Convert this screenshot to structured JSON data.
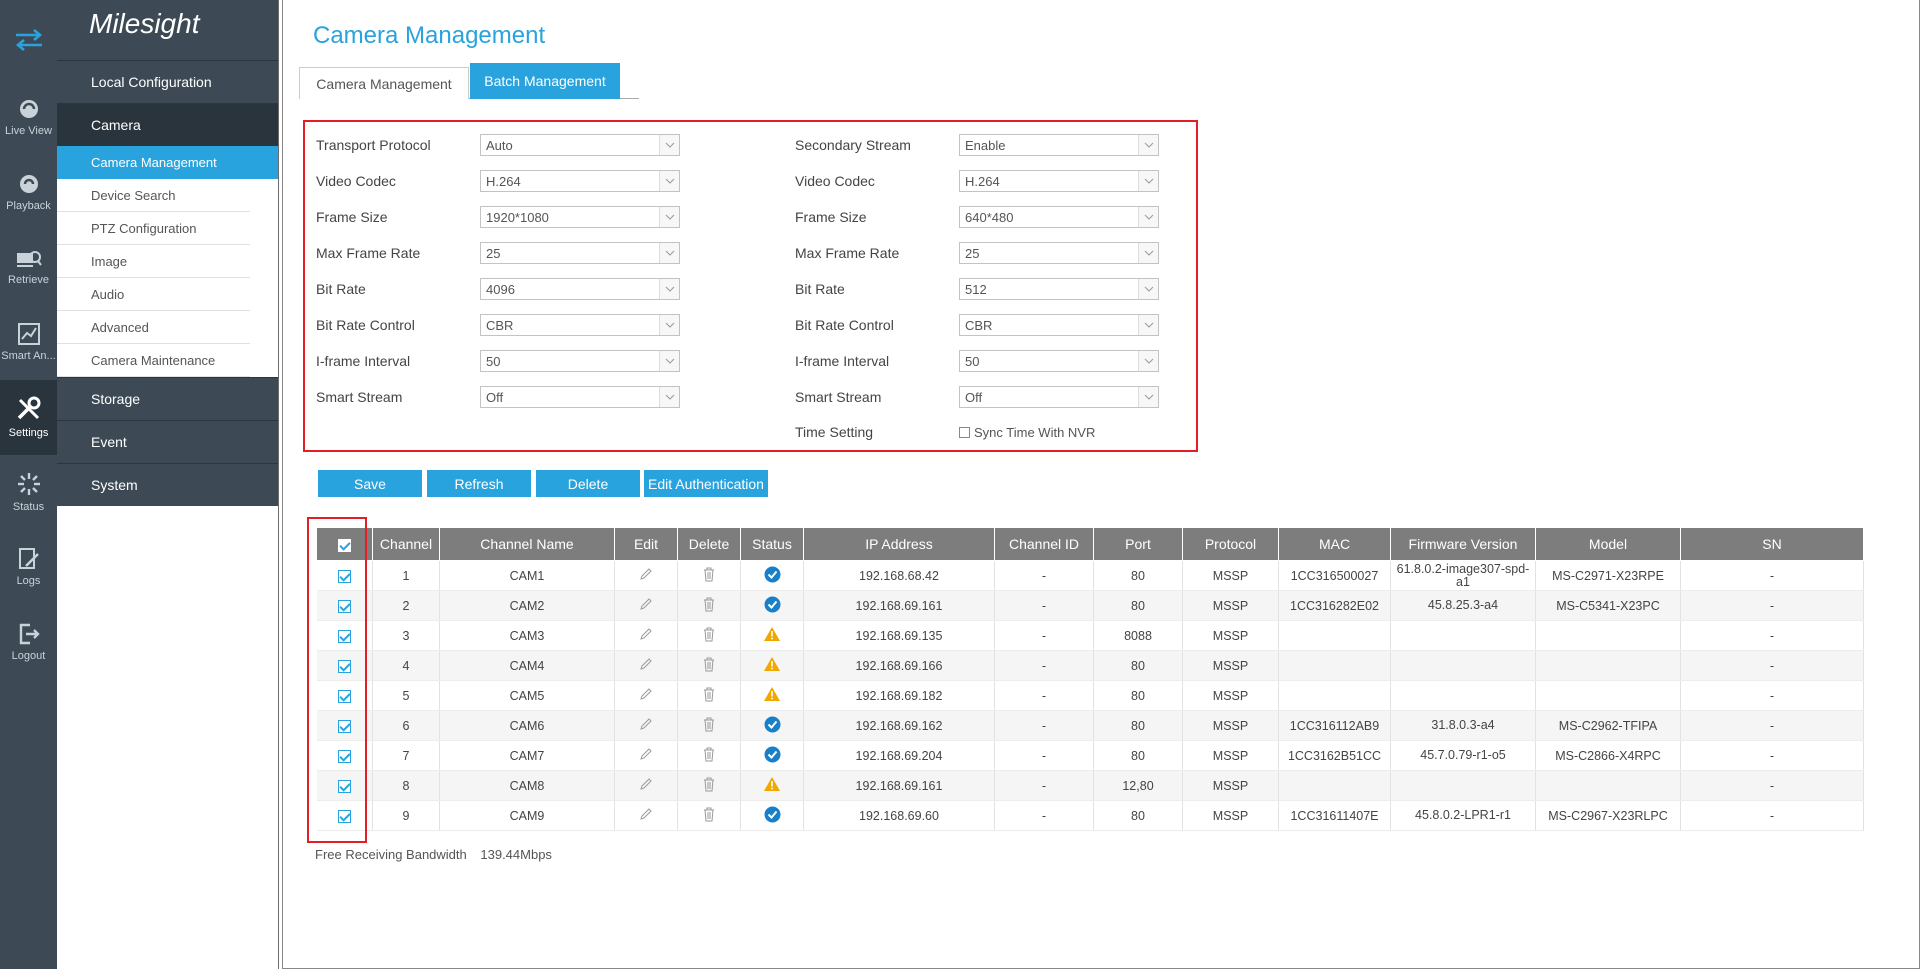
{
  "rail": {
    "items": [
      {
        "label": "Live View",
        "icon": "live-view-icon"
      },
      {
        "label": "Playback",
        "icon": "playback-icon"
      },
      {
        "label": "Retrieve",
        "icon": "retrieve-icon"
      },
      {
        "label": "Smart An...",
        "icon": "smart-analysis-icon"
      },
      {
        "label": "Settings",
        "icon": "settings-icon"
      },
      {
        "label": "Status",
        "icon": "status-icon"
      },
      {
        "label": "Logs",
        "icon": "logs-icon"
      },
      {
        "label": "Logout",
        "icon": "logout-icon"
      }
    ]
  },
  "menu": {
    "logo": "Milesight",
    "local_configuration": "Local Configuration",
    "camera": "Camera",
    "camera_subs": [
      "Camera Management",
      "Device Search",
      "PTZ Configuration",
      "Image",
      "Audio",
      "Advanced",
      "Camera Maintenance"
    ],
    "storage": "Storage",
    "event": "Event",
    "system": "System"
  },
  "page": {
    "title": "Camera Management",
    "tabs": [
      "Camera Management",
      "Batch Management"
    ]
  },
  "form": {
    "left": [
      {
        "label": "Transport Protocol",
        "value": "Auto"
      },
      {
        "label": "Video Codec",
        "value": "H.264"
      },
      {
        "label": "Frame Size",
        "value": "1920*1080"
      },
      {
        "label": "Max Frame Rate",
        "value": "25"
      },
      {
        "label": "Bit Rate",
        "value": "4096"
      },
      {
        "label": "Bit Rate Control",
        "value": "CBR"
      },
      {
        "label": "I-frame Interval",
        "value": "50"
      },
      {
        "label": "Smart Stream",
        "value": "Off"
      }
    ],
    "right": [
      {
        "label": "Secondary Stream",
        "value": "Enable"
      },
      {
        "label": "Video Codec",
        "value": "H.264"
      },
      {
        "label": "Frame Size",
        "value": "640*480"
      },
      {
        "label": "Max Frame Rate",
        "value": "25"
      },
      {
        "label": "Bit Rate",
        "value": "512"
      },
      {
        "label": "Bit Rate Control",
        "value": "CBR"
      },
      {
        "label": "I-frame Interval",
        "value": "50"
      },
      {
        "label": "Smart Stream",
        "value": "Off"
      }
    ],
    "time_setting_label": "Time Setting",
    "sync_time_label": "Sync Time With NVR"
  },
  "buttons": {
    "save": "Save",
    "refresh": "Refresh",
    "delete": "Delete",
    "edit_auth": "Edit Authentication"
  },
  "table": {
    "headers": [
      "Channel",
      "Channel Name",
      "Edit",
      "Delete",
      "Status",
      "IP Address",
      "Channel ID",
      "Port",
      "Protocol",
      "MAC",
      "Firmware Version",
      "Model",
      "SN"
    ],
    "rows": [
      {
        "channel": "1",
        "name": "CAM1",
        "status": "ok",
        "ip": "192.168.68.42",
        "channel_id": "-",
        "port": "80",
        "protocol": "MSSP",
        "mac": "1CC316500027",
        "firmware": "61.8.0.2-image307-spd-a1",
        "model": "MS-C2971-X23RPE",
        "sn": "-"
      },
      {
        "channel": "2",
        "name": "CAM2",
        "status": "ok",
        "ip": "192.168.69.161",
        "channel_id": "-",
        "port": "80",
        "protocol": "MSSP",
        "mac": "1CC316282E02",
        "firmware": "45.8.25.3-a4",
        "model": "MS-C5341-X23PC",
        "sn": "-"
      },
      {
        "channel": "3",
        "name": "CAM3",
        "status": "warn",
        "ip": "192.168.69.135",
        "channel_id": "-",
        "port": "8088",
        "protocol": "MSSP",
        "mac": "",
        "firmware": "",
        "model": "",
        "sn": "-"
      },
      {
        "channel": "4",
        "name": "CAM4",
        "status": "warn",
        "ip": "192.168.69.166",
        "channel_id": "-",
        "port": "80",
        "protocol": "MSSP",
        "mac": "",
        "firmware": "",
        "model": "",
        "sn": "-"
      },
      {
        "channel": "5",
        "name": "CAM5",
        "status": "warn",
        "ip": "192.168.69.182",
        "channel_id": "-",
        "port": "80",
        "protocol": "MSSP",
        "mac": "",
        "firmware": "",
        "model": "",
        "sn": "-"
      },
      {
        "channel": "6",
        "name": "CAM6",
        "status": "ok",
        "ip": "192.168.69.162",
        "channel_id": "-",
        "port": "80",
        "protocol": "MSSP",
        "mac": "1CC316112AB9",
        "firmware": "31.8.0.3-a4",
        "model": "MS-C2962-TFIPA",
        "sn": "-"
      },
      {
        "channel": "7",
        "name": "CAM7",
        "status": "ok",
        "ip": "192.168.69.204",
        "channel_id": "-",
        "port": "80",
        "protocol": "MSSP",
        "mac": "1CC3162B51CC",
        "firmware": "45.7.0.79-r1-o5",
        "model": "MS-C2866-X4RPC",
        "sn": "-"
      },
      {
        "channel": "8",
        "name": "CAM8",
        "status": "warn",
        "ip": "192.168.69.161",
        "channel_id": "-",
        "port": "12,80",
        "protocol": "MSSP",
        "mac": "",
        "firmware": "",
        "model": "",
        "sn": "-"
      },
      {
        "channel": "9",
        "name": "CAM9",
        "status": "ok",
        "ip": "192.168.69.60",
        "channel_id": "-",
        "port": "80",
        "protocol": "MSSP",
        "mac": "1CC31611407E",
        "firmware": "45.8.0.2-LPR1-r1",
        "model": "MS-C2967-X23RLPC",
        "sn": "-"
      }
    ]
  },
  "footer": {
    "bandwidth_label": "Free Receiving Bandwidth",
    "bandwidth_value": "139.44Mbps"
  },
  "colors": {
    "accent": "#29a3dd",
    "sidebar": "#3d4a55",
    "highlight": "#e21f26",
    "warning": "#f0a800"
  }
}
